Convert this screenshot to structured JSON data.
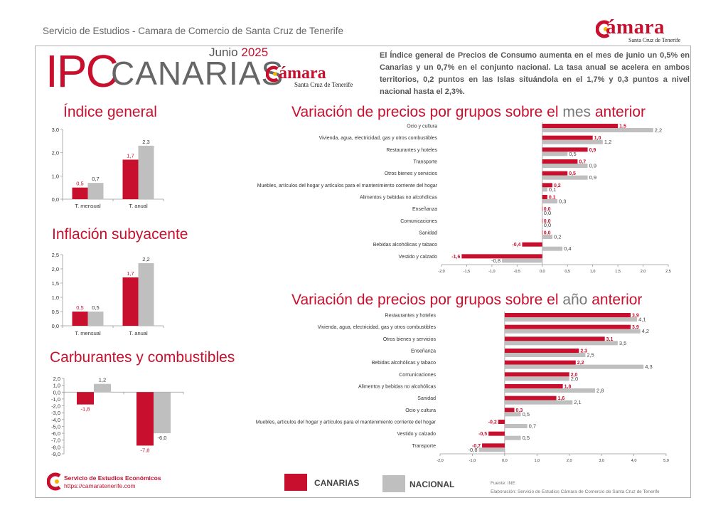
{
  "header": {
    "org": "Servicio de Estudios - Camara de Comercio de Santa Cruz de Tenerife",
    "logo_word": "ámara",
    "logo_sub": "Santa Cruz de Tenerife"
  },
  "title": {
    "ipc": "IPC",
    "region": "CANARIAS",
    "month": "Junio",
    "year": "2025"
  },
  "summary": "El Índice general de Precios de Consumo aumenta en el mes de junio un 0,5% en Canarias y un 0,7% en el conjunto nacional. La tasa anual se acelera en ambos territorios, 0,2 puntos en las Islas situándola en el 1,7% y 0,3 puntos a nivel nacional hasta el 2,3%.",
  "colors": {
    "canarias": "#c8102e",
    "nacional": "#bfbfbf",
    "accent": "#c8102e"
  },
  "sections": {
    "general": "Índice general",
    "subyacente": "Inflación subyacente",
    "carburantes": "Carburantes y combustibles",
    "mes_a": "Variación de precios por grupos sobre el ",
    "mes_b": "mes",
    "mes_c": " anterior",
    "anio_a": "Variación de precios por grupos sobre el ",
    "anio_b": "año",
    "anio_c": " anterior"
  },
  "legend": {
    "canarias": "CANARIAS",
    "nacional": "NACIONAL"
  },
  "footer": {
    "org": "Servicio de Estudios Económicos",
    "url": "https://camaratenerife.com",
    "fuente": "Fuente: INE",
    "elaboracion": "Elaboración: Servicio de Estudios Cámara de Comercio de Santa Cruz de Tenerife"
  },
  "chart_data": [
    {
      "id": "general",
      "type": "bar",
      "categories": [
        "T. mensual",
        "T. anual"
      ],
      "series": [
        {
          "name": "CANARIAS",
          "values": [
            0.5,
            1.7
          ],
          "labels": [
            "0,5",
            "1,7"
          ]
        },
        {
          "name": "NACIONAL",
          "values": [
            0.7,
            2.3
          ],
          "labels": [
            "0,7",
            "2,3"
          ]
        }
      ],
      "ylim": [
        0,
        3
      ],
      "yticks": [
        0,
        1,
        2,
        3
      ],
      "ytick_labels": [
        "0,0",
        "1,0",
        "2,0",
        "3,0"
      ]
    },
    {
      "id": "subyacente",
      "type": "bar",
      "categories": [
        "T. mensual",
        "T. anual"
      ],
      "series": [
        {
          "name": "CANARIAS",
          "values": [
            0.5,
            1.7
          ],
          "labels": [
            "0,5",
            "1,7"
          ]
        },
        {
          "name": "NACIONAL",
          "values": [
            0.5,
            2.2
          ],
          "labels": [
            "0,5",
            "2,2"
          ]
        }
      ],
      "ylim": [
        0,
        2.5
      ],
      "yticks": [
        0,
        0.5,
        1,
        1.5,
        2,
        2.5
      ],
      "ytick_labels": [
        "0,0",
        "0,5",
        "1,0",
        "1,5",
        "2,0",
        "2,5"
      ]
    },
    {
      "id": "carburantes",
      "type": "bar",
      "categories": [
        "T. mensual",
        "T. anual"
      ],
      "series": [
        {
          "name": "CANARIAS",
          "values": [
            -1.8,
            -7.8
          ],
          "labels": [
            "-1,8",
            "-7,8"
          ]
        },
        {
          "name": "NACIONAL",
          "values": [
            1.2,
            -6.0
          ],
          "labels": [
            "1,2",
            "-6,0"
          ]
        }
      ],
      "ylim": [
        -9,
        2
      ],
      "yticks": [
        2,
        1,
        0,
        -1,
        -2,
        -3,
        -4,
        -5,
        -6,
        -7,
        -8,
        -9
      ],
      "ytick_labels": [
        "2,0",
        "1,0",
        "0,0",
        "-1,0",
        "-2,0",
        "-3,0",
        "-4,0",
        "-5,0",
        "-6,0",
        "-7,0",
        "-8,0",
        "-9,0"
      ]
    },
    {
      "id": "mes",
      "type": "bar",
      "orientation": "horizontal",
      "categories": [
        "Ocio y cultura",
        "Vivienda, agua, electricidad, gas y otros combustibles",
        "Restaurantes y hoteles",
        "Transporte",
        "Otros bienes y servicios",
        "Muebles, artículos del hogar y artículos para el mantenimiento corriente del hogar",
        "Alimentos y bebidas no alcohólicas",
        "Enseñanza",
        "Comunicaciones",
        "Sanidad",
        "Bebidas alcohólicas y tabaco",
        "Vestido y calzado"
      ],
      "series": [
        {
          "name": "CANARIAS",
          "values": [
            1.5,
            1.0,
            0.9,
            0.7,
            0.5,
            0.2,
            0.1,
            0.0,
            0.0,
            0.0,
            -0.4,
            -1.6
          ],
          "labels": [
            "1,5",
            "1,0",
            "0,9",
            "0,7",
            "0,5",
            "0,2",
            "0,1",
            "0,0",
            "0,0",
            "0,0",
            "-0,4",
            "-1,6"
          ]
        },
        {
          "name": "NACIONAL",
          "values": [
            2.2,
            1.2,
            0.5,
            0.9,
            0.9,
            0.1,
            0.3,
            0.0,
            0.0,
            0.2,
            0.4,
            -0.8
          ],
          "labels": [
            "2,2",
            "1,2",
            "0,5",
            "0,9",
            "0,9",
            "0,1",
            "0,3",
            "0,0",
            "0,0",
            "0,2",
            "0,4",
            "-0,8"
          ]
        }
      ],
      "xlim": [
        -2,
        2.5
      ],
      "xticks": [
        -2,
        -1.5,
        -1,
        -0.5,
        0,
        0.5,
        1,
        1.5,
        2,
        2.5
      ],
      "xtick_labels": [
        "-2,0",
        "-1,5",
        "-1,0",
        "-0,5",
        "0,0",
        "0,5",
        "1,0",
        "1,5",
        "2,0",
        "2,5"
      ]
    },
    {
      "id": "anio",
      "type": "bar",
      "orientation": "horizontal",
      "categories": [
        "Restaurantes y hoteles",
        "Vivienda, agua, electricidad, gas y otros combustibles",
        "Otros bienes y servicios",
        "Enseñanza",
        "Bebidas alcohólicas y tabaco",
        "Comunicaciones",
        "Alimentos y bebidas no alcohólicas",
        "Sanidad",
        "Ocio y cultura",
        "Muebles, artículos del hogar y artículos para el mantenimiento corriente del hogar",
        "Vestido y calzado",
        "Transporte"
      ],
      "series": [
        {
          "name": "CANARIAS",
          "values": [
            3.9,
            3.9,
            3.1,
            2.3,
            2.2,
            2.0,
            1.8,
            1.6,
            0.3,
            -0.2,
            -0.5,
            -0.7
          ],
          "labels": [
            "3,9",
            "3,9",
            "3,1",
            "2,3",
            "2,2",
            "2,0",
            "1,8",
            "1,6",
            "0,3",
            "-0,2",
            "-0,5",
            "-0,7"
          ]
        },
        {
          "name": "NACIONAL",
          "values": [
            4.1,
            4.2,
            3.5,
            2.5,
            4.3,
            2.0,
            2.8,
            2.1,
            0.5,
            0.7,
            0.5,
            -0.8
          ],
          "labels": [
            "4,1",
            "4,2",
            "3,5",
            "2,5",
            "4,3",
            "2,0",
            "2,8",
            "2,1",
            "0,5",
            "0,7",
            "0,5",
            "-0,8"
          ]
        }
      ],
      "xlim": [
        -2,
        5
      ],
      "xticks": [
        -2,
        -1,
        0,
        1,
        2,
        3,
        4,
        5
      ],
      "xtick_labels": [
        "-2,0",
        "-1,0",
        "0,0",
        "1,0",
        "2,0",
        "3,0",
        "4,0",
        "5,0"
      ]
    }
  ]
}
